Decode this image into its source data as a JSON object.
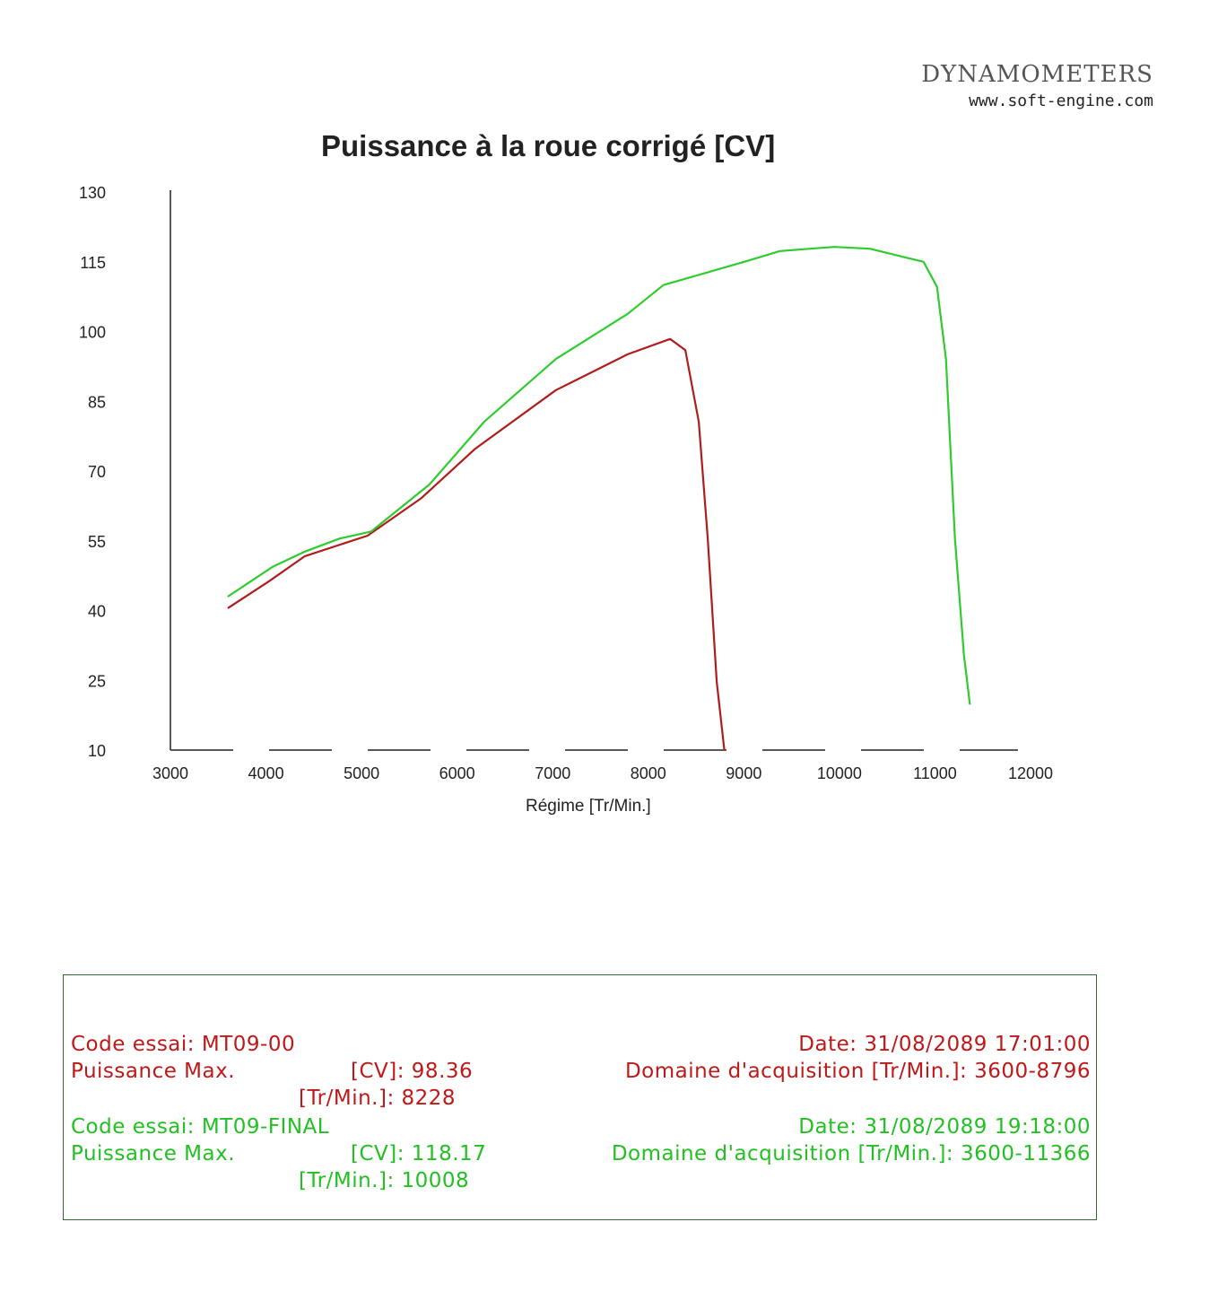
{
  "header": {
    "brand": "DYNAMOMETERS",
    "url": "www.soft-engine.com"
  },
  "chart_data": {
    "type": "line",
    "title": "Puissance à la roue corrigé [CV]",
    "xlabel": "Régime [Tr/Min.]",
    "ylabel": "",
    "xlim": [
      3000,
      12000
    ],
    "ylim": [
      10,
      130
    ],
    "xticks": [
      "3000",
      "4000",
      "5000",
      "6000",
      "7000",
      "8000",
      "9000",
      "10000",
      "11000",
      "12000"
    ],
    "yticks": [
      "130",
      "115",
      "100",
      "85",
      "70",
      "55",
      "40",
      "25",
      "10"
    ],
    "grid": false,
    "series": [
      {
        "name": "MT09-00",
        "color": "#b01c1c",
        "x": [
          3600,
          4032,
          4407,
          5064,
          5627,
          6190,
          7034,
          7784,
          8228,
          8388,
          8529,
          8622,
          8716,
          8796
        ],
        "y": [
          40.5,
          46.3,
          51.7,
          56.1,
          64.2,
          74.8,
          87.4,
          95.1,
          98.4,
          96,
          80.6,
          55.5,
          24.7,
          10
        ]
      },
      {
        "name": "MT09-FINAL",
        "color": "#2ecc2e",
        "x": [
          3600,
          4069,
          4397,
          4772,
          5100,
          5710,
          6283,
          7034,
          7784,
          8159,
          9004,
          9379,
          9942,
          10318,
          10880,
          11021,
          11115,
          11209,
          11303,
          11366
        ],
        "y": [
          43,
          49.4,
          52.6,
          55.5,
          57,
          67.1,
          80.6,
          94.1,
          103.8,
          110,
          115,
          117.3,
          118.2,
          117.8,
          115,
          109.6,
          94.1,
          55.5,
          30.5,
          19.8
        ]
      }
    ]
  },
  "info": {
    "run1": {
      "code": "Code essai: MT09-00",
      "pmax_label": "Puissance Max.",
      "cv": "[CV]: 98.36",
      "rpm": "[Tr/Min.]: 8228",
      "date": "Date: 31/08/2089 17:01:00",
      "range": "Domaine d'acquisition [Tr/Min.]: 3600-8796"
    },
    "run2": {
      "code": "Code essai: MT09-FINAL",
      "pmax_label": "Puissance Max.",
      "cv": "[CV]: 118.17",
      "rpm": "[Tr/Min.]: 10008",
      "date": "Date: 31/08/2089 19:18:00",
      "range": "Domaine d'acquisition [Tr/Min.]: 3600-11366"
    }
  }
}
